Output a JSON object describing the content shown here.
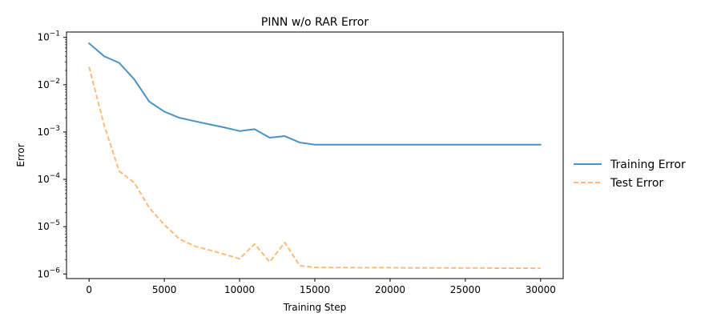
{
  "chart_data": {
    "type": "line",
    "title": "PINN w/o RAR Error",
    "xlabel": "Training Step",
    "ylabel": "Error",
    "yscale": "log",
    "xlim": [
      -1500,
      31500
    ],
    "ylim": [
      8e-07,
      0.13
    ],
    "xticks": [
      0,
      5000,
      10000,
      15000,
      20000,
      25000,
      30000
    ],
    "xtick_labels": [
      "0",
      "5000",
      "10000",
      "15000",
      "20000",
      "25000",
      "30000"
    ],
    "yticks": [
      0.1,
      0.01,
      0.001,
      0.0001,
      1e-05,
      1e-06
    ],
    "ytick_labels": [
      {
        "base": "10",
        "exp": "−1"
      },
      {
        "base": "10",
        "exp": "−2"
      },
      {
        "base": "10",
        "exp": "−3"
      },
      {
        "base": "10",
        "exp": "−4"
      },
      {
        "base": "10",
        "exp": "−5"
      },
      {
        "base": "10",
        "exp": "−6"
      }
    ],
    "grid": false,
    "legend_position": "outside-right",
    "series": [
      {
        "name": "Training Error",
        "color": "#1f77b4",
        "style": "solid",
        "x": [
          0,
          1000,
          2000,
          3000,
          4000,
          5000,
          6000,
          7000,
          8000,
          9000,
          10000,
          11000,
          12000,
          13000,
          14000,
          15000,
          16000,
          17000,
          18000,
          19000,
          20000,
          21000,
          22000,
          23000,
          24000,
          25000,
          26000,
          27000,
          28000,
          29000,
          30000
        ],
        "y": [
          0.075,
          0.04,
          0.029,
          0.013,
          0.0044,
          0.0027,
          0.002,
          0.0017,
          0.00145,
          0.00125,
          0.00105,
          0.00115,
          0.00076,
          0.00082,
          0.0006,
          0.00054,
          0.00054,
          0.00054,
          0.00054,
          0.00054,
          0.00054,
          0.00054,
          0.00054,
          0.00054,
          0.00054,
          0.00054,
          0.00054,
          0.00054,
          0.00054,
          0.00054,
          0.00054
        ]
      },
      {
        "name": "Test Error",
        "color": "#ffbb78",
        "style": "dashed",
        "x": [
          0,
          1000,
          2000,
          3000,
          4000,
          5000,
          6000,
          7000,
          8000,
          9000,
          10000,
          11000,
          12000,
          13000,
          14000,
          15000,
          16000,
          17000,
          18000,
          19000,
          20000,
          21000,
          22000,
          23000,
          24000,
          25000,
          26000,
          27000,
          28000,
          29000,
          30000
        ],
        "y": [
          0.024,
          0.0014,
          0.00015,
          8.5e-05,
          2.5e-05,
          1.1e-05,
          5.5e-06,
          3.9e-06,
          3.2e-06,
          2.6e-06,
          2.1e-06,
          4.3e-06,
          1.8e-06,
          4.6e-06,
          1.5e-06,
          1.38e-06,
          1.37e-06,
          1.37e-06,
          1.36e-06,
          1.36e-06,
          1.36e-06,
          1.35e-06,
          1.35e-06,
          1.35e-06,
          1.34e-06,
          1.34e-06,
          1.34e-06,
          1.33e-06,
          1.33e-06,
          1.33e-06,
          1.32e-06
        ]
      }
    ]
  }
}
